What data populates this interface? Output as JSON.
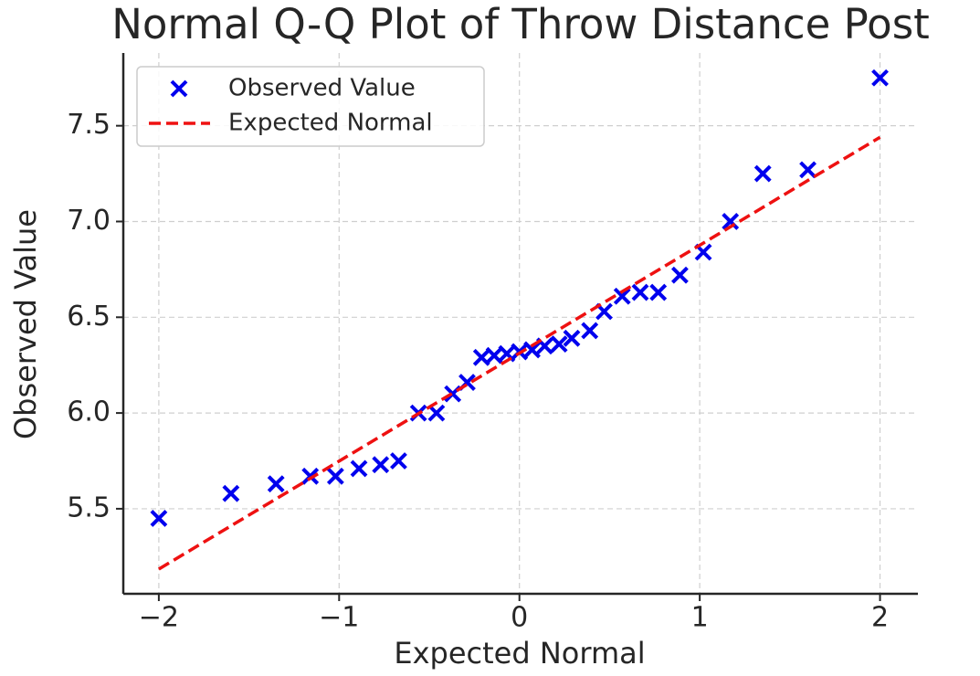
{
  "chart_data": {
    "type": "scatter",
    "title": "Normal Q-Q Plot of Throw Distance Post",
    "x_label": "Expected Normal",
    "y_label": "Observed Value",
    "xlim": [
      -2.197,
      2.21
    ],
    "ylim": [
      5.056,
      7.88
    ],
    "xticks": [
      {
        "value": -2,
        "label": "−2"
      },
      {
        "value": -1,
        "label": "−1"
      },
      0,
      1,
      2
    ],
    "yticks": [
      5.5,
      {
        "value": 6,
        "label": "6.0"
      },
      6.5,
      {
        "value": 7,
        "label": "7.0"
      },
      7.5
    ],
    "grid": true,
    "legend": "upper left",
    "series": [
      {
        "name": "Observed Value",
        "type": "scatter",
        "marker": "x",
        "color": "#0000ee",
        "x": [
          -2.0,
          -1.6,
          -1.35,
          -1.16,
          -1.02,
          -0.89,
          -0.77,
          -0.67,
          -0.56,
          -0.46,
          -0.37,
          -0.29,
          -0.21,
          -0.14,
          -0.07,
          0,
          0.07,
          0.14,
          0.22,
          0.29,
          0.39,
          0.47,
          0.57,
          0.67,
          0.77,
          0.89,
          1.02,
          1.17,
          1.35,
          1.6,
          2.0
        ],
        "values": [
          5.45,
          5.58,
          5.63,
          5.67,
          5.67,
          5.71,
          5.73,
          5.75,
          6.0,
          6.0,
          6.1,
          6.16,
          6.29,
          6.3,
          6.31,
          6.32,
          6.33,
          6.35,
          6.36,
          6.39,
          6.43,
          6.53,
          6.61,
          6.63,
          6.63,
          6.72,
          6.84,
          7.0,
          7.25,
          7.27,
          7.75
        ]
      },
      {
        "name": "Expected Normal",
        "type": "line",
        "style": "dashed",
        "color": "#ee1111",
        "x": [
          -2.0,
          2.0
        ],
        "values": [
          5.185,
          7.44
        ]
      }
    ]
  }
}
